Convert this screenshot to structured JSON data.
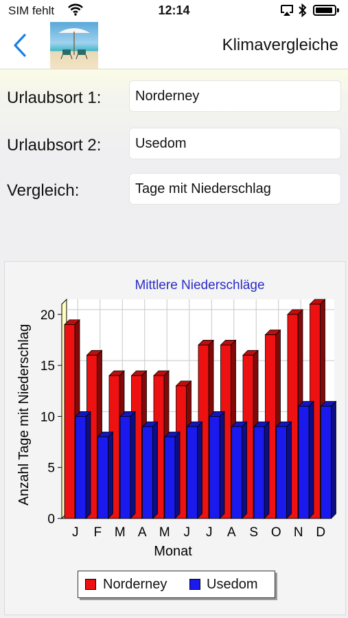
{
  "status": {
    "carrier": "SIM fehlt",
    "time": "12:14",
    "icons": [
      "wifi-icon",
      "airplay-icon",
      "bluetooth-icon",
      "battery-icon"
    ]
  },
  "nav": {
    "title": "Klimavergleiche",
    "back_icon": "chevron-left-icon",
    "thumbnail": "beach-chairs-image"
  },
  "form": {
    "place1_label": "Urlaubsort 1:",
    "place1_value": "Norderney",
    "place2_label": "Urlaubsort 2:",
    "place2_value": "Usedom",
    "compare_label": "Vergleich:",
    "compare_value": "Tage mit Niederschlag"
  },
  "chart_data": {
    "type": "bar",
    "title": "Mittlere Niederschläge",
    "xlabel": "Monat",
    "ylabel": "Anzahl Tage mit Niederschlag",
    "categories": [
      "J",
      "F",
      "M",
      "A",
      "M",
      "J",
      "J",
      "A",
      "S",
      "O",
      "N",
      "D"
    ],
    "series": [
      {
        "name": "Norderney",
        "color": "#ee1111",
        "values": [
          19,
          16,
          14,
          14,
          14,
          13,
          17,
          17,
          16,
          18,
          20,
          21
        ]
      },
      {
        "name": "Usedom",
        "color": "#1a1aee",
        "values": [
          10,
          8,
          10,
          9,
          8,
          9,
          10,
          9,
          9,
          9,
          11,
          11
        ]
      }
    ],
    "ylim": [
      0,
      21
    ],
    "yticks": [
      0,
      5,
      10,
      15,
      20
    ],
    "grid": true,
    "legend_position": "bottom"
  }
}
